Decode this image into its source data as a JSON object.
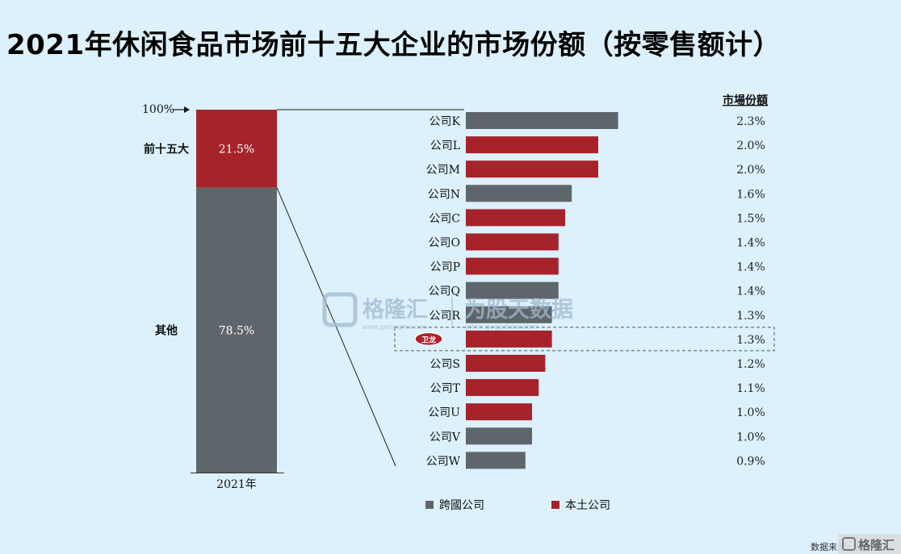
{
  "title": "2021年休闲食品市场前十五大企业的市场份额（按零售额计）",
  "colors": {
    "domestic": "#a6232b",
    "multinational": "#5f666b",
    "background": "#dcf1fb"
  },
  "chart_data": [
    {
      "type": "bar",
      "stacked": true,
      "category": "2021年",
      "total_label": "100%",
      "segments": [
        {
          "label": "前十五大",
          "value": 21.5,
          "value_label": "21.5%",
          "color": "#a6232b"
        },
        {
          "label": "其他",
          "value": 78.5,
          "value_label": "78.5%",
          "color": "#5f666b"
        }
      ]
    },
    {
      "type": "bar",
      "orientation": "horizontal",
      "value_header": "市場份額",
      "categories": [
        "公司K",
        "公司L",
        "公司M",
        "公司N",
        "公司C",
        "公司O",
        "公司P",
        "公司Q",
        "公司R",
        "",
        "公司S",
        "公司T",
        "公司U",
        "公司V",
        "公司W"
      ],
      "values": [
        2.3,
        2.0,
        2.0,
        1.6,
        1.5,
        1.4,
        1.4,
        1.4,
        1.3,
        1.3,
        1.2,
        1.1,
        1.0,
        1.0,
        0.9
      ],
      "value_labels": [
        "2.3%",
        "2.0%",
        "2.0%",
        "1.6%",
        "1.5%",
        "1.4%",
        "1.4%",
        "1.4%",
        "1.3%",
        "1.3%",
        "1.2%",
        "1.1%",
        "1.0%",
        "1.0%",
        "0.9%"
      ],
      "kind": [
        "multinational",
        "domestic",
        "domestic",
        "multinational",
        "domestic",
        "domestic",
        "domestic",
        "multinational",
        "multinational",
        "domestic",
        "domestic",
        "domestic",
        "domestic",
        "multinational",
        "multinational"
      ],
      "highlighted_index": 9,
      "highlight_logo_text": "卫龙",
      "legend": [
        {
          "key": "multinational",
          "label": "跨國公司"
        },
        {
          "key": "domestic",
          "label": "本土公司"
        }
      ]
    }
  ],
  "watermark": {
    "brand": "格隆汇",
    "brand_url": "www.gelonghui.com",
    "slogan": "为股天数据",
    "slogan_url": "www.gegudata.com"
  },
  "source_note": "数据来源：招股书",
  "corner_brand": "格隆汇"
}
